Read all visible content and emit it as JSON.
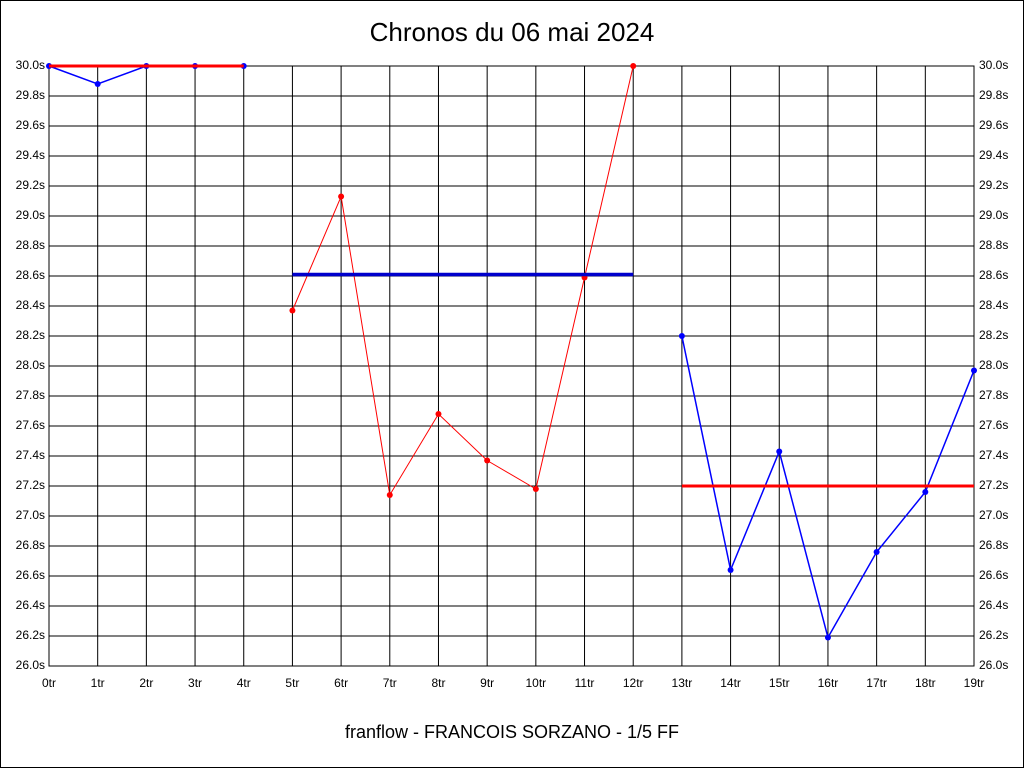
{
  "chart_data": {
    "type": "line",
    "title": "Chronos du 06 mai 2024",
    "footer": "franflow - FRANCOIS SORZANO - 1/5 FF",
    "categories": [
      "0tr",
      "1tr",
      "2tr",
      "3tr",
      "4tr",
      "5tr",
      "6tr",
      "7tr",
      "8tr",
      "9tr",
      "10tr",
      "11tr",
      "12tr",
      "13tr",
      "14tr",
      "15tr",
      "16tr",
      "17tr",
      "18tr",
      "19tr"
    ],
    "series": [
      {
        "color": "#0000ff",
        "width": 1.5,
        "markers": true,
        "values": [
          30.0,
          29.88,
          30.0,
          30.0,
          30.0,
          null,
          null,
          null,
          null,
          null,
          null,
          null,
          null,
          28.2,
          26.64,
          27.43,
          26.19,
          26.76,
          27.16,
          27.97
        ]
      },
      {
        "color": "#ff0000",
        "width": 1,
        "markers": true,
        "values": [
          null,
          null,
          null,
          null,
          null,
          28.37,
          29.13,
          27.14,
          27.68,
          27.37,
          27.18,
          28.59,
          30.0,
          null,
          null,
          null,
          null,
          null,
          null,
          null
        ]
      },
      {
        "color": "#ff0000",
        "width": 3,
        "markers": false,
        "values": [
          30.0,
          30.0,
          30.0,
          30.0,
          30.0,
          null,
          null,
          null,
          null,
          null,
          null,
          null,
          null,
          27.2,
          27.2,
          27.2,
          27.2,
          27.2,
          27.2,
          27.2
        ]
      },
      {
        "color": "#0000cc",
        "width": 3.5,
        "markers": false,
        "values": [
          null,
          null,
          null,
          null,
          null,
          28.61,
          28.61,
          28.61,
          28.61,
          28.61,
          28.61,
          28.61,
          28.61,
          null,
          null,
          null,
          null,
          null,
          null,
          null
        ]
      }
    ],
    "ylim": [
      26.0,
      30.0
    ],
    "yticks": [
      {
        "value": 26.0,
        "label": "26.0s"
      },
      {
        "value": 26.2,
        "label": "26.2s"
      },
      {
        "value": 26.4,
        "label": "26.4s"
      },
      {
        "value": 26.6,
        "label": "26.6s"
      },
      {
        "value": 26.8,
        "label": "26.8s"
      },
      {
        "value": 27.0,
        "label": "27.0s"
      },
      {
        "value": 27.2,
        "label": "27.2s"
      },
      {
        "value": 27.4,
        "label": "27.4s"
      },
      {
        "value": 27.6,
        "label": "27.6s"
      },
      {
        "value": 27.8,
        "label": "27.8s"
      },
      {
        "value": 28.0,
        "label": "28.0s"
      },
      {
        "value": 28.2,
        "label": "28.2s"
      },
      {
        "value": 28.4,
        "label": "28.4s"
      },
      {
        "value": 28.6,
        "label": "28.6s"
      },
      {
        "value": 28.8,
        "label": "28.8s"
      },
      {
        "value": 29.0,
        "label": "29.0s"
      },
      {
        "value": 29.2,
        "label": "29.2s"
      },
      {
        "value": 29.4,
        "label": "29.4s"
      },
      {
        "value": 29.6,
        "label": "29.6s"
      },
      {
        "value": 29.8,
        "label": "29.8s"
      },
      {
        "value": 30.0,
        "label": "30.0s"
      }
    ],
    "right_axis": true,
    "grid": true
  }
}
